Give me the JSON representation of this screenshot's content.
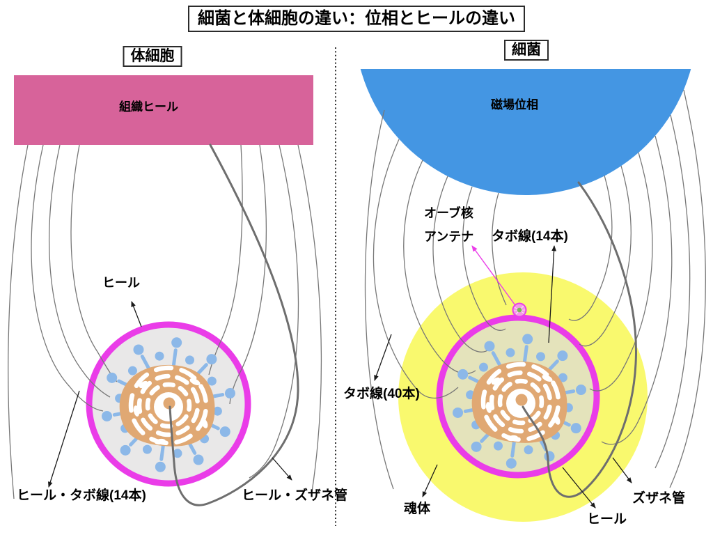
{
  "title": "細菌と体細胞の違い：位相とヒールの違い",
  "left_panel": {
    "header": "体細胞",
    "tissue_heal": "組織ヒール",
    "heal": "ヒール",
    "heal_tabo_line": "ヒール・タボ線(14本)",
    "heal_zuzane_tube": "ヒール・ズザネ管"
  },
  "right_panel": {
    "header": "細菌",
    "magnetic_phase": "磁場位相",
    "orb_core": "オーブ核",
    "antenna": "アンテナ",
    "tabo_line_14": "タボ線(14本)",
    "tabo_line_40": "タボ線(40本)",
    "soul_body": "魂体",
    "heal": "ヒール",
    "zuzane_tube": "ズザネ管"
  },
  "colors": {
    "tissue-pink": "#d7639a",
    "phase-blue": "#4496e3",
    "membrane-magenta": "#ea3ce8",
    "soul-yellow": "#f9f96e",
    "cell-gray": "#e9e8e8",
    "cell-olive": "#e4e3bb",
    "nucleus-orange": "#e0a873",
    "pin-blue": "#8cb8e8",
    "field-line": "#777777",
    "tube-gray": "#6e6e6e",
    "orb-pink": "#f29ae4",
    "orb-green": "#7cb356",
    "text": "#000000"
  }
}
